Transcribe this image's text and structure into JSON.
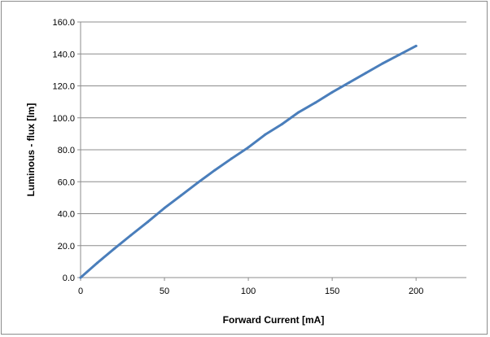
{
  "chart_data": {
    "type": "line",
    "title": "",
    "xlabel": "Forward Current [mA]",
    "ylabel": "Luminous - flux [lm]",
    "xlim": [
      0,
      230
    ],
    "ylim": [
      0,
      160
    ],
    "x_ticks": [
      0,
      50,
      100,
      150,
      200
    ],
    "x_tick_labels": [
      "0",
      "50",
      "100",
      "150",
      "200"
    ],
    "y_ticks": [
      0,
      20,
      40,
      60,
      80,
      100,
      120,
      140,
      160
    ],
    "y_tick_labels": [
      "0.0",
      "20.0",
      "40.0",
      "60.0",
      "80.0",
      "100.0",
      "120.0",
      "140.0",
      "160.0"
    ],
    "grid": {
      "horizontal": true,
      "vertical": false
    },
    "series": [
      {
        "color": "#4a7ebb",
        "x": [
          0,
          10,
          20,
          30,
          40,
          50,
          60,
          70,
          80,
          90,
          100,
          110,
          120,
          130,
          140,
          150,
          160,
          170,
          180,
          190,
          200
        ],
        "y": [
          0,
          9.2,
          18.0,
          26.5,
          34.8,
          43.5,
          51.5,
          59.5,
          67.2,
          74.5,
          81.5,
          89.5,
          96.0,
          103.5,
          109.5,
          116.0,
          122.0,
          128.0,
          134.0,
          139.5,
          145.0
        ]
      }
    ]
  }
}
